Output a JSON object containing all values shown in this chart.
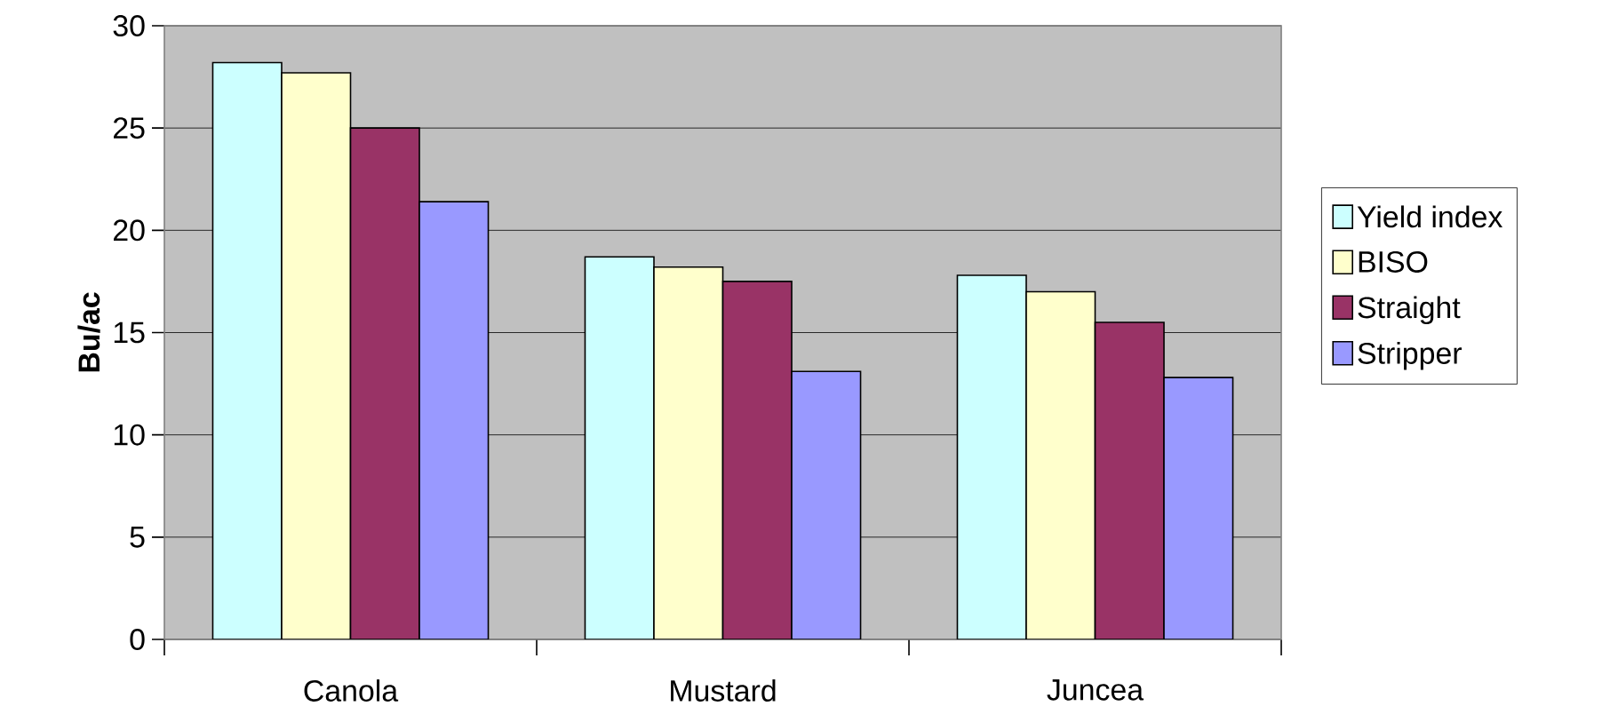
{
  "chart_data": {
    "type": "bar",
    "ylabel": "**Bu/ac**",
    "categories": [
      "Canola",
      "Mustard",
      "Juncea"
    ],
    "series": [
      {
        "name": "Yield index",
        "color": "#ccffff",
        "values": [
          28.2,
          18.7,
          17.8
        ]
      },
      {
        "name": "BISO",
        "color": "#ffffcc",
        "values": [
          27.7,
          18.2,
          17.0
        ]
      },
      {
        "name": "Straight",
        "color": "#993366",
        "values": [
          25.0,
          17.5,
          15.5
        ]
      },
      {
        "name": "Stripper",
        "color": "#9999ff",
        "values": [
          21.4,
          13.1,
          12.8
        ]
      }
    ],
    "ylim": [
      0,
      30
    ],
    "yticks": [
      0,
      5,
      10,
      15,
      20,
      25,
      30
    ],
    "grid": "y",
    "legend": "right"
  }
}
